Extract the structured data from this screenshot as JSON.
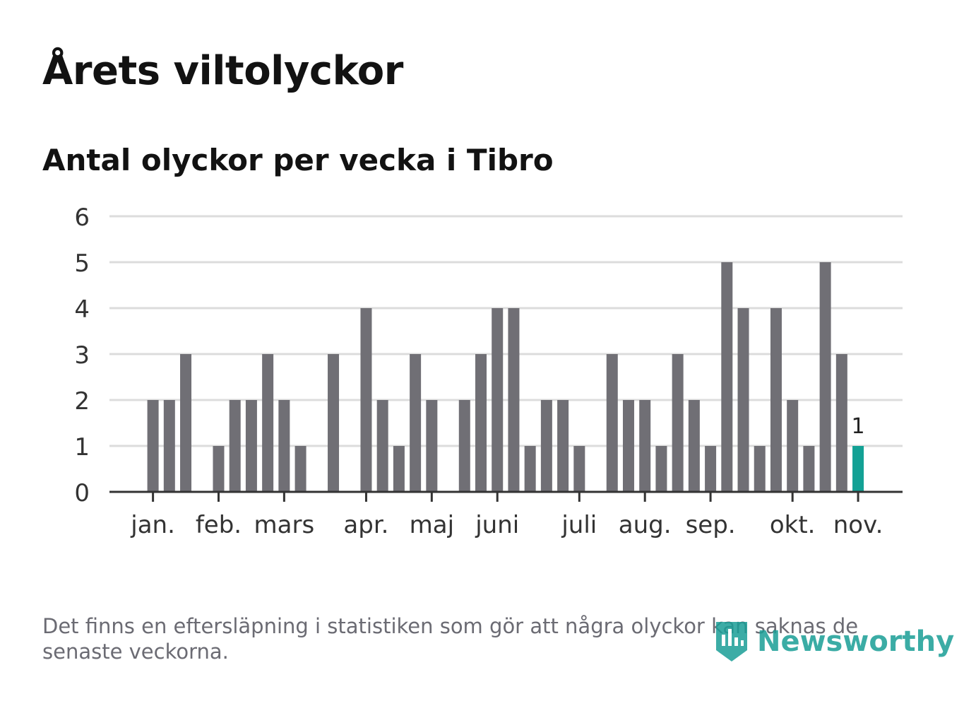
{
  "title": "Årets viltolyckor",
  "subtitle": "Antal olyckor per vecka i Tibro",
  "note": "Det finns en eftersläpning i statistiken som gör att några olyckor kan saknas de senaste veckorna.",
  "logo": {
    "text": "Newsworthy",
    "icon": "newsworthy-logo-icon",
    "color": "#1a9e96"
  },
  "colors": {
    "bar": "#706f75",
    "highlight": "#13a195",
    "grid": "#dcdcdc",
    "axis": "#333333"
  },
  "chart_data": {
    "type": "bar",
    "title": "Årets viltolyckor",
    "subtitle": "Antal olyckor per vecka i Tibro",
    "xlabel": "",
    "ylabel": "",
    "ylim": [
      0,
      6
    ],
    "yticks": [
      0,
      1,
      2,
      3,
      4,
      5,
      6
    ],
    "grid": true,
    "month_labels": [
      {
        "label": "jan.",
        "week": 1
      },
      {
        "label": "feb.",
        "week": 5
      },
      {
        "label": "mars",
        "week": 9
      },
      {
        "label": "apr.",
        "week": 14
      },
      {
        "label": "maj",
        "week": 18
      },
      {
        "label": "juni",
        "week": 22
      },
      {
        "label": "juli",
        "week": 27
      },
      {
        "label": "aug.",
        "week": 31
      },
      {
        "label": "sep.",
        "week": 35
      },
      {
        "label": "okt.",
        "week": 40
      },
      {
        "label": "nov.",
        "week": 44
      }
    ],
    "weeks": [
      1,
      2,
      3,
      4,
      5,
      6,
      7,
      8,
      9,
      10,
      11,
      12,
      13,
      14,
      15,
      16,
      17,
      18,
      19,
      20,
      21,
      22,
      23,
      24,
      25,
      26,
      27,
      28,
      29,
      30,
      31,
      32,
      33,
      34,
      35,
      36,
      37,
      38,
      39,
      40,
      41,
      42,
      43,
      44
    ],
    "values": [
      2,
      2,
      3,
      0,
      1,
      2,
      2,
      3,
      2,
      1,
      0,
      3,
      0,
      4,
      2,
      1,
      3,
      2,
      0,
      2,
      3,
      4,
      4,
      1,
      2,
      2,
      1,
      0,
      3,
      2,
      2,
      1,
      3,
      2,
      1,
      5,
      4,
      1,
      4,
      2,
      1,
      5,
      3,
      1
    ],
    "highlight_index": 43,
    "highlight_label": "1"
  }
}
